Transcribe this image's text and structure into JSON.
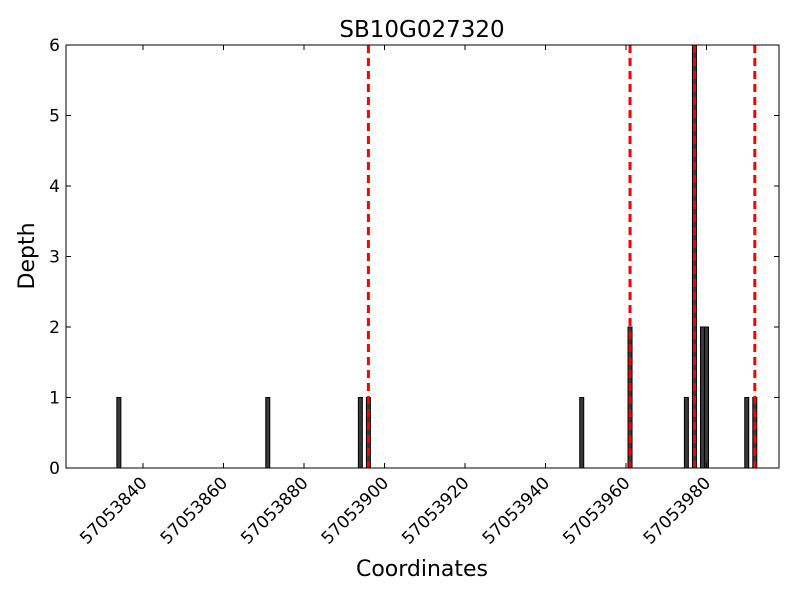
{
  "chart_data": {
    "type": "bar",
    "title": "SB10G027320",
    "xlabel": "Coordinates",
    "ylabel": "Depth",
    "xlim": [
      57053824,
      57053986
    ],
    "ylim": [
      0,
      6
    ],
    "grid": false,
    "x_ticks": [
      57053840,
      57053860,
      57053880,
      57053900,
      57053920,
      57053940,
      57053960,
      57053980
    ],
    "y_ticks": [
      0,
      1,
      2,
      3,
      4,
      5,
      6
    ],
    "bar_color": "#3a3a3a",
    "bar_edge_color": "#000000",
    "series": [
      {
        "x": [
          57053834,
          57053871,
          57053894,
          57053896,
          57053949,
          57053961,
          57053975,
          57053977,
          57053979,
          57053980,
          57053990,
          57053992
        ],
        "values": [
          1,
          1,
          1,
          1,
          1,
          2,
          1,
          6,
          2,
          2,
          1,
          1
        ]
      }
    ],
    "reference_lines": {
      "color": "#ff0000",
      "style": "dashed",
      "x": [
        57053896,
        57053961,
        57053977,
        57053992
      ]
    }
  }
}
